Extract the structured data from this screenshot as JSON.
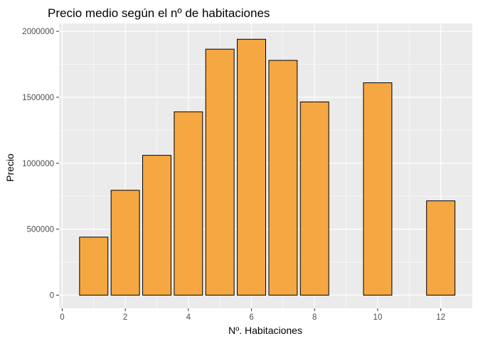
{
  "chart_data": {
    "type": "bar",
    "title": "Precio medio según el nº de habitaciones",
    "xlabel": "Nº. Habitaciones",
    "ylabel": "Precio",
    "x": [
      1,
      2,
      3,
      4,
      5,
      6,
      7,
      8,
      10,
      12
    ],
    "values": [
      440000,
      795000,
      1060000,
      1390000,
      1865000,
      1940000,
      1780000,
      1465000,
      1610000,
      715000
    ],
    "xlim": [
      0,
      13
    ],
    "ylim": [
      0,
      2000000
    ],
    "xticks": [
      0,
      2,
      4,
      6,
      8,
      10,
      12
    ],
    "yticks": [
      0,
      500000,
      1000000,
      1500000,
      2000000
    ],
    "xtick_labels": [
      "0",
      "2",
      "4",
      "6",
      "8",
      "10",
      "12"
    ],
    "ytick_labels": [
      "0",
      "500000",
      "1000000",
      "1500000",
      "2000000"
    ],
    "grid": true,
    "colors": {
      "bar_fill": "#F5A742",
      "bar_stroke": "#000000",
      "panel_bg": "#EBEBEB",
      "grid": "#FFFFFF"
    }
  }
}
